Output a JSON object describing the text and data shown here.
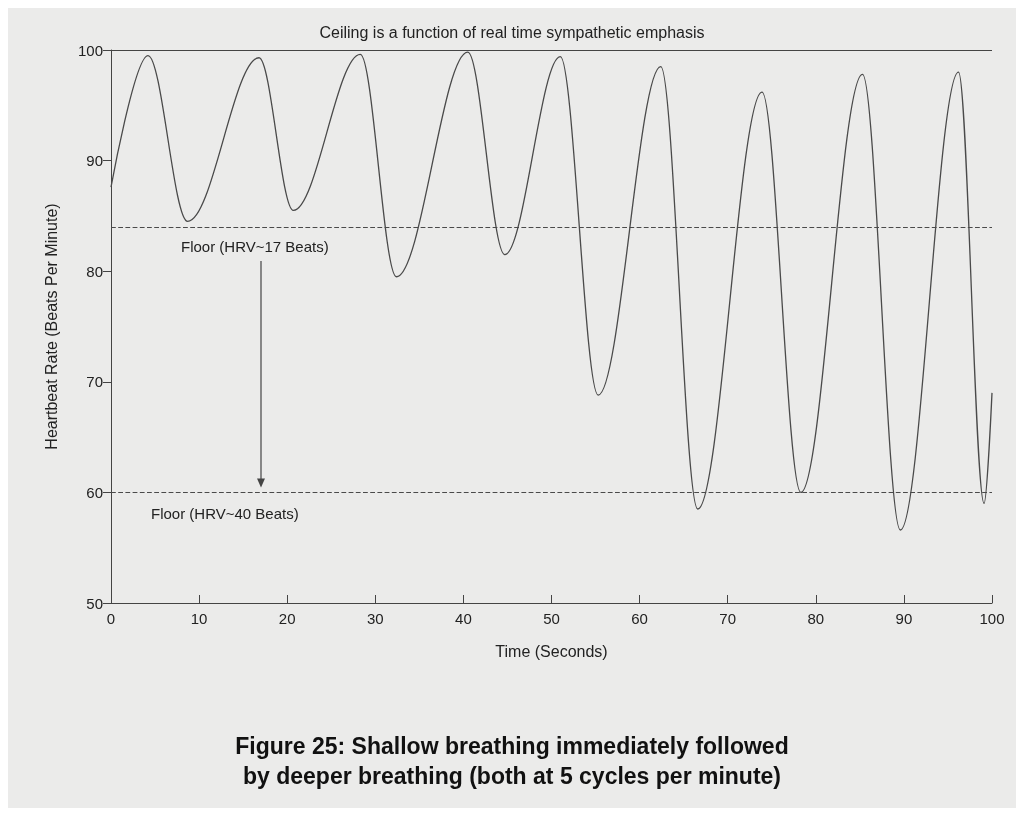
{
  "chart_data": {
    "type": "line",
    "title": "Figure 25: Shallow breathing immediately followed\nby deeper breathing (both at 5 cycles per minute)",
    "xlabel": "Time (Seconds)",
    "ylabel": "Heartbeat Rate (Beats Per Minute)",
    "annotations": [
      "Ceiling is a function of real time sympathetic emphasis"
    ],
    "series": [
      {
        "color": "#4a4a4a",
        "x": [
          0,
          4.2,
          8.7,
          16.8,
          20.7,
          28.3,
          32.4,
          40.5,
          44.7,
          51,
          55.3,
          62.4,
          66.6,
          73.9,
          78.3,
          85.3,
          89.6,
          96.2,
          99.1,
          100
        ],
        "values": [
          87.6,
          99.5,
          84.5,
          99.3,
          85.5,
          99.6,
          79.5,
          99.8,
          81.5,
          99.4,
          68.8,
          98.5,
          58.5,
          96.2,
          60,
          97.8,
          56.6,
          98,
          59,
          69
        ]
      }
    ],
    "xlim": [
      0,
      100
    ],
    "xticks": [
      0,
      10,
      20,
      30,
      40,
      50,
      60,
      70,
      80,
      90,
      100
    ],
    "ylim": [
      50,
      100
    ],
    "yticks": [
      50,
      60,
      70,
      80,
      90,
      100
    ],
    "ref_lines": [
      {
        "axis": "y",
        "value": 84,
        "label": "Floor (HRV~17 Beats)",
        "line_style": "dashed",
        "color": "#4a4a4a"
      },
      {
        "axis": "y",
        "value": 60,
        "label": "Floor (HRV~40 Beats)",
        "line_style": "dashed",
        "color": "#4a4a4a"
      }
    ],
    "grid": false,
    "marker": "none",
    "line_style": "solid"
  }
}
